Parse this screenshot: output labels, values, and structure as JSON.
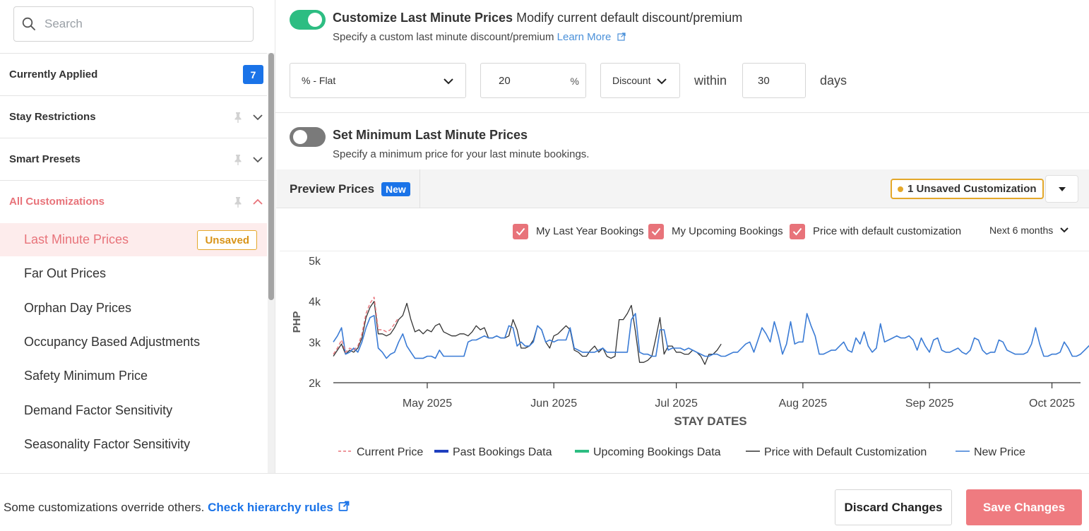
{
  "sidebar": {
    "search_placeholder": "Search",
    "currently_applied": {
      "label": "Currently Applied",
      "count": "7"
    },
    "sections": [
      {
        "label": "Stay Restrictions"
      },
      {
        "label": "Smart Presets"
      },
      {
        "label": "All Customizations"
      }
    ],
    "items": [
      {
        "label": "Last Minute Prices",
        "tag": "Unsaved"
      },
      {
        "label": "Far Out Prices"
      },
      {
        "label": "Orphan Day Prices"
      },
      {
        "label": "Occupancy Based Adjustments"
      },
      {
        "label": "Safety Minimum Price"
      },
      {
        "label": "Demand Factor Sensitivity"
      },
      {
        "label": "Seasonality Factor Sensitivity"
      }
    ]
  },
  "custom_last_minute": {
    "enabled": true,
    "title": "Customize Last Minute Prices",
    "subtitle": "Modify current default discount/premium",
    "description": "Specify a custom last minute discount/premium",
    "learn_more": "Learn More",
    "type_value": "% - Flat",
    "amount_value": "20",
    "amount_unit": "%",
    "direction_value": "Discount",
    "within_label": "within",
    "days_value": "30",
    "days_label": "days"
  },
  "min_last_minute": {
    "enabled": false,
    "title": "Set Minimum Last Minute Prices",
    "description": "Specify a minimum price for your last minute bookings."
  },
  "preview": {
    "title": "Preview Prices",
    "new_badge": "New",
    "unsaved_customization": "1 Unsaved Customization",
    "checkboxes": [
      {
        "label": "My Last Year Bookings",
        "checked": true
      },
      {
        "label": "My Upcoming Bookings",
        "checked": true
      },
      {
        "label": "Price with default customization",
        "checked": true
      }
    ],
    "range_label": "Next 6 months"
  },
  "chart_data": {
    "type": "line",
    "xlabel": "STAY DATES",
    "ylabel": "PHP",
    "ylim": [
      2000,
      5000
    ],
    "yticks": [
      "2k",
      "3k",
      "4k",
      "5k"
    ],
    "xticks": [
      "May 2025",
      "Jun 2025",
      "Jul 2025",
      "Aug 2025",
      "Sep 2025",
      "Oct 2025"
    ],
    "x_range": [
      "2025-04-08",
      "2025-10-08"
    ],
    "legend": [
      "Current Price",
      "Past Bookings Data",
      "Upcoming Bookings Data",
      "Price with Default Customization",
      "New Price"
    ],
    "colors": {
      "current_price": "#e8737a",
      "past_bookings": "#1f3fbf",
      "upcoming_bookings": "#2dbd82",
      "default_customization": "#333333",
      "new_price": "#3a7bd5"
    },
    "series": [
      {
        "name": "Current Price",
        "start": "2025-04-08",
        "values": [
          2700,
          2850,
          3050,
          2750,
          2850,
          2800,
          2900,
          3200,
          3700,
          3950,
          4100,
          3300,
          3300,
          3250,
          3300,
          3450,
          3600
        ]
      },
      {
        "name": "Price with Default Customization",
        "start": "2025-04-08",
        "values": [
          2650,
          2800,
          2950,
          2700,
          2800,
          2750,
          2850,
          3100,
          3600,
          3850,
          4000,
          3200,
          3200,
          3150,
          3200,
          3350,
          3550,
          3650,
          3950,
          3550,
          3250,
          3300,
          3200,
          3300,
          3250,
          3400,
          3450,
          3250,
          3200,
          3150,
          3150,
          3200,
          3200,
          3150,
          3250,
          3400,
          3300,
          3350,
          3100,
          3100,
          3150,
          3100,
          3100,
          3150,
          3550,
          3300,
          2850,
          2850,
          2900,
          3050,
          3400,
          3300,
          3000,
          2850,
          3150,
          3200,
          3300,
          3400,
          3300,
          2800,
          2750,
          2650,
          2650,
          2800,
          2900,
          2750,
          2850,
          2650,
          2600,
          2650,
          3550,
          3550,
          3700,
          3900,
          3250,
          2500,
          2500,
          2550,
          2650,
          3100,
          3600,
          2700,
          2900,
          2900,
          2750,
          2750,
          2700,
          2700,
          2800,
          2750,
          2650,
          2450,
          2700,
          2700,
          2800,
          2950
        ]
      },
      {
        "name": "New Price",
        "start": "2025-04-08",
        "values": [
          3000,
          3150,
          3350,
          2700,
          2750,
          2850,
          2750,
          3000,
          3350,
          3600,
          3650,
          2850,
          2750,
          2600,
          2700,
          2750,
          3000,
          3200,
          2900,
          2750,
          2600,
          2600,
          2600,
          2650,
          2650,
          2600,
          2800,
          2650,
          2650,
          2650,
          2650,
          2650,
          2650,
          3000,
          3050,
          3050,
          3100,
          3150,
          3100,
          3100,
          3150,
          3100,
          3100,
          3400,
          3350,
          2900,
          3000,
          2900,
          2900,
          3000,
          3400,
          3300,
          3000,
          3050,
          3000,
          3050,
          3050,
          3050,
          3350,
          2850,
          2800,
          2750,
          2750,
          2750,
          2750,
          2800,
          2850,
          2750,
          2750,
          2750,
          2750,
          2750,
          2750,
          3550,
          3700,
          2750,
          2700,
          2700,
          2650,
          2650,
          3300,
          3300,
          2800,
          2850,
          2850,
          2850,
          2800,
          2850,
          2800,
          2750,
          2700,
          2650,
          2650,
          2700,
          2700,
          2650,
          2650,
          2700,
          2750,
          2750,
          2850,
          2950,
          3000,
          2750,
          3050,
          3350,
          3200,
          3000,
          3500,
          3150,
          2700,
          2950,
          3500,
          2950,
          3000,
          3000,
          3700,
          3400,
          3150,
          2700,
          2700,
          2750,
          2800,
          2800,
          2900,
          3000,
          2800,
          2750,
          3100,
          2950,
          3250,
          2900,
          2750,
          2850,
          3450,
          3000,
          3050,
          3100,
          3150,
          3100,
          3100,
          3150,
          3050,
          2800,
          3100,
          2900,
          2750,
          3050,
          3100,
          2800,
          2750,
          2750,
          2800,
          2850,
          2750,
          2700,
          2800,
          3100,
          3050,
          2800,
          2700,
          2750,
          2750,
          3050,
          3000,
          2800,
          2750,
          2700,
          2700,
          2700,
          2750,
          2950,
          3350,
          2950,
          2650,
          2650,
          2700,
          2700,
          2750,
          3000,
          2850,
          2650,
          2650,
          2700,
          2800,
          2900,
          3000,
          2750,
          2700,
          2750,
          3000,
          2800,
          2700,
          2650,
          2900,
          3050,
          2750,
          2800,
          2950,
          2950,
          2800,
          2900,
          2800,
          3050,
          3100,
          2950,
          2850,
          2750,
          2950,
          2900,
          3050,
          3150,
          2850,
          2750,
          2800,
          2850,
          2900,
          3200,
          3250,
          3300,
          3350
        ]
      }
    ]
  },
  "footer": {
    "note": "Some customizations override others.",
    "link": "Check hierarchy rules",
    "discard": "Discard Changes",
    "save": "Save Changes"
  }
}
